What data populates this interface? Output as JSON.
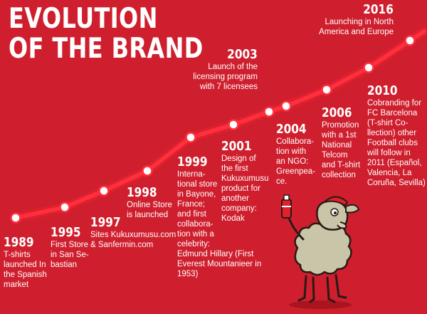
{
  "title": {
    "line1": "EVOLUTION",
    "line2": "OF THE BRAND"
  },
  "colors": {
    "background": "#cf1f2e",
    "line": "#ff2f3d",
    "line_glow": "#e8202f",
    "dot": "#ffffff",
    "text": "#ffffff"
  },
  "events": [
    {
      "year": "1989",
      "text": "T-shirts\nlaunched In\nthe Spanish\nmarket"
    },
    {
      "year": "1995",
      "text": "First Store\nin San Se-\nbastian"
    },
    {
      "year": "1997",
      "text": "Sites Kukuxumusu.com\n& Sanfermin.com"
    },
    {
      "year": "1998",
      "text": "Online Store\nis launched"
    },
    {
      "year": "1999",
      "text": "Interna-\ntional store\nin Bayone,\nFrance;\nand first\ncollabora-\ntion with a\ncelebrity:\nEdmund Hillary (First\nEverest Mountanieer in\n1953)"
    },
    {
      "year": "2001",
      "text": "Design of\nthe first\nKukuxumusu\nproduct for\nanother\ncompany:\nKodak"
    },
    {
      "year": "2003",
      "text": "Launch of the\nlicensing program\nwith 7 licensees"
    },
    {
      "year": "2004",
      "text": "Collabora-\ntion with\nan NGO:\nGreenpea-\nce."
    },
    {
      "year": "2006",
      "text": "Promotion\nwith a 1st\nNational\nTelcom\nand T-shirt\ncollection"
    },
    {
      "year": "2010",
      "text": "Cobranding for\nFC Barcelona\n(T-shirt Co-\nllection) other\nFootball clubs\nwill follow in\n2011 (Español,\nValencia, La\nCoruña, Sevilla)"
    },
    {
      "year": "2016",
      "text": "Launching in North\nAmerica and Europe"
    }
  ]
}
